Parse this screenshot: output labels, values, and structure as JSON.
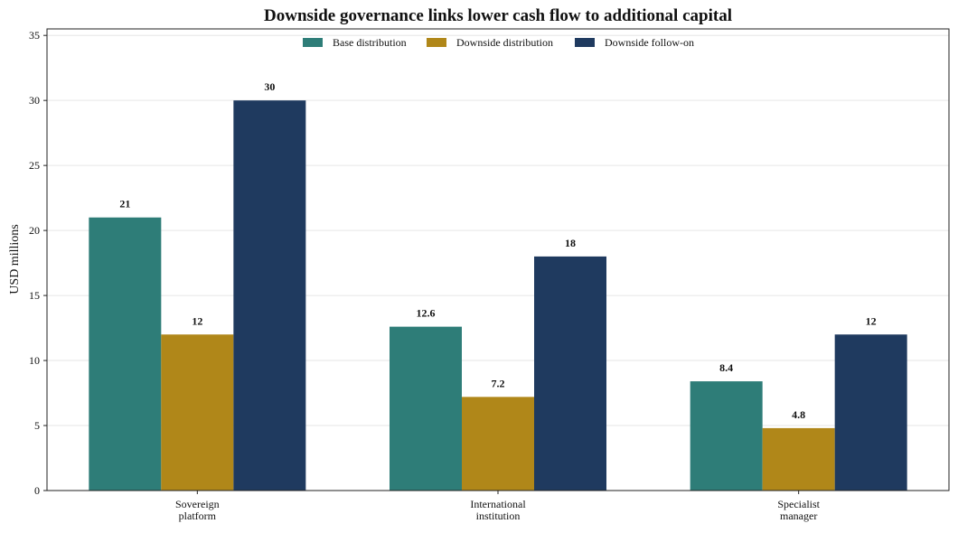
{
  "chart_data": {
    "type": "bar",
    "title": "Downside governance links lower cash flow to additional capital",
    "xlabel": "",
    "ylabel": "USD millions",
    "ylim": [
      0,
      35.5
    ],
    "yticks": [
      0,
      5,
      10,
      15,
      20,
      25,
      30,
      35
    ],
    "grid": true,
    "legend_position": "top-center",
    "categories": [
      [
        "Sovereign",
        "platform"
      ],
      [
        "International",
        "institution"
      ],
      [
        "Specialist",
        "manager"
      ]
    ],
    "series": [
      {
        "name": "Base distribution",
        "color": "#2e7d78",
        "values": [
          21,
          12.6,
          8.4
        ],
        "labels": [
          "21",
          "12.6",
          "8.4"
        ]
      },
      {
        "name": "Downside distribution",
        "color": "#b08719",
        "values": [
          12,
          7.2,
          4.8
        ],
        "labels": [
          "12",
          "7.2",
          "4.8"
        ]
      },
      {
        "name": "Downside follow-on",
        "color": "#1f3a5f",
        "values": [
          30,
          18,
          12
        ],
        "labels": [
          "30",
          "18",
          "12"
        ]
      }
    ]
  }
}
